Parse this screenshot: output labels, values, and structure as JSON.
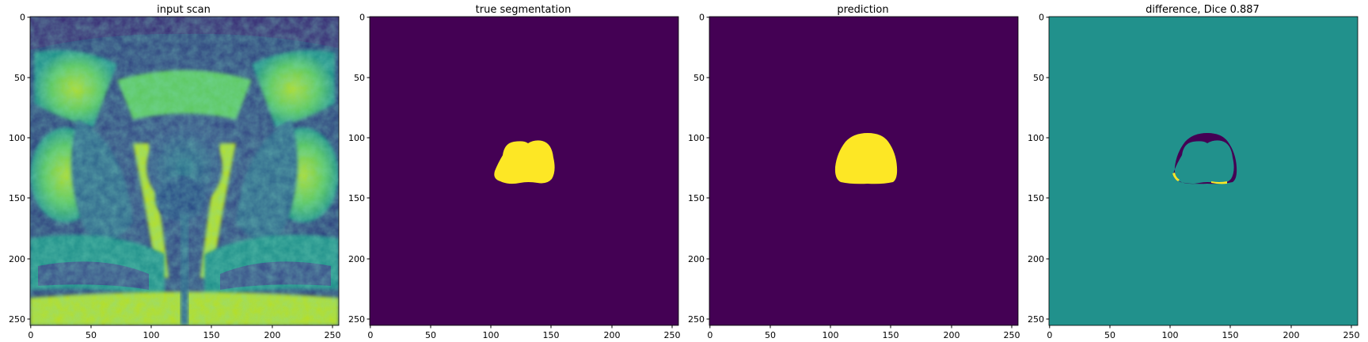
{
  "figure": {
    "colors": {
      "viridis_low": "#440154",
      "viridis_mid": "#21918c",
      "viridis_high": "#fde725",
      "viridis_blue": "#3b528b",
      "viridis_green": "#5ec962"
    },
    "panels": [
      {
        "id": "input",
        "title": "input scan",
        "content": "mri-scan",
        "xticks": [
          "0",
          "50",
          "100",
          "150",
          "200",
          "250"
        ],
        "yticks": [
          "0",
          "50",
          "100",
          "150",
          "200",
          "250"
        ]
      },
      {
        "id": "truth",
        "title": "true segmentation",
        "content": "mask-true",
        "xticks": [
          "0",
          "50",
          "100",
          "150",
          "200",
          "250"
        ],
        "yticks": [
          "0",
          "50",
          "100",
          "150",
          "200",
          "250"
        ]
      },
      {
        "id": "prediction",
        "title": "prediction",
        "content": "mask-pred",
        "xticks": [
          "0",
          "50",
          "100",
          "150",
          "200",
          "250"
        ],
        "yticks": [
          "0",
          "50",
          "100",
          "150",
          "200",
          "250"
        ]
      },
      {
        "id": "difference",
        "title": "difference, Dice 0.887",
        "content": "mask-diff",
        "xticks": [
          "0",
          "50",
          "100",
          "150",
          "200",
          "250"
        ],
        "yticks": [
          "0",
          "50",
          "100",
          "150",
          "200",
          "250"
        ]
      }
    ]
  }
}
